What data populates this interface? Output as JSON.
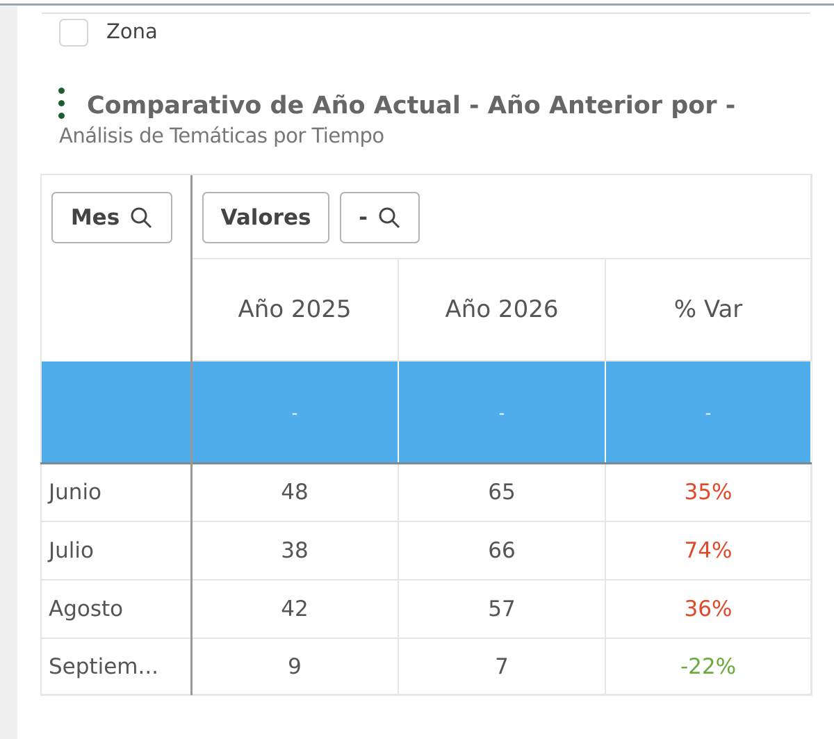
{
  "filter": {
    "label": "Zona"
  },
  "header": {
    "title": "Comparativo de Año Actual - Año Anterior por -",
    "subtitle": "Análisis de Temáticas por Tiempo"
  },
  "table": {
    "row_dimension": "Mes",
    "column_dimensions": [
      "Valores",
      "-"
    ],
    "columns": [
      "Año 2025",
      "Año 2026",
      "% Var"
    ],
    "totals": [
      "-",
      "-",
      "-"
    ],
    "rows": [
      [
        "Junio",
        "48",
        "65",
        "35%"
      ],
      [
        "Julio",
        "38",
        "66",
        "74%"
      ],
      [
        "Agosto",
        "42",
        "57",
        "36%"
      ],
      [
        "Septiem...",
        "9",
        "7",
        "-22%"
      ]
    ]
  }
}
